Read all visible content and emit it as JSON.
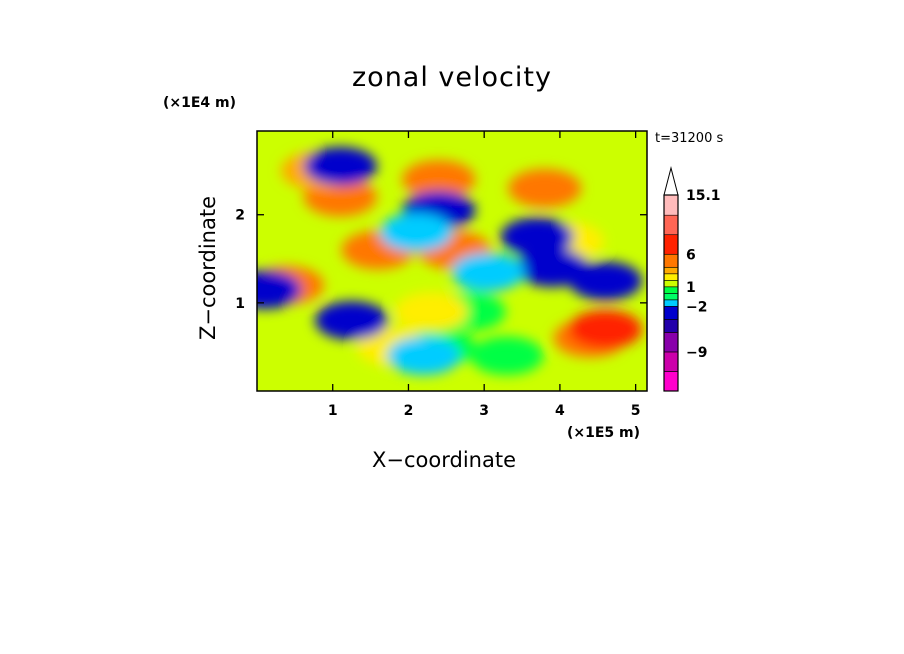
{
  "chart_data": {
    "type": "heatmap",
    "title": "zonal velocity",
    "xlabel": "X−coordinate",
    "ylabel": "Z−coordinate",
    "x_units": "(×1E5 m)",
    "y_units": "(×1E4 m)",
    "annotation": "t=31200 s",
    "xlim": [
      0,
      5.15
    ],
    "ylim": [
      0,
      2.95
    ],
    "x_ticks": [
      1,
      2,
      3,
      4,
      5
    ],
    "y_ticks": [
      1,
      2
    ],
    "colorbar": {
      "labels": [
        {
          "value": 15.1,
          "text": "15.1"
        },
        {
          "value": 6,
          "text": "6"
        },
        {
          "value": 1,
          "text": "1"
        },
        {
          "value": -2,
          "text": "−2"
        },
        {
          "value": -9,
          "text": "−9"
        }
      ],
      "levels": [
        {
          "min": -15,
          "max": -12,
          "color": "#ff00cc"
        },
        {
          "min": -12,
          "max": -9,
          "color": "#cc00aa"
        },
        {
          "min": -9,
          "max": -6,
          "color": "#8800aa"
        },
        {
          "min": -6,
          "max": -4,
          "color": "#2200aa"
        },
        {
          "min": -4,
          "max": -2,
          "color": "#0000cc"
        },
        {
          "min": -2,
          "max": -1,
          "color": "#00ccff"
        },
        {
          "min": -1,
          "max": 0,
          "color": "#00ff66"
        },
        {
          "min": 0,
          "max": 1,
          "color": "#00ff44"
        },
        {
          "min": 1,
          "max": 2,
          "color": "#ccff00"
        },
        {
          "min": 2,
          "max": 3,
          "color": "#ffee00"
        },
        {
          "min": 3,
          "max": 4,
          "color": "#ffaa00"
        },
        {
          "min": 4,
          "max": 6,
          "color": "#ff7700"
        },
        {
          "min": 6,
          "max": 9,
          "color": "#ff2200"
        },
        {
          "min": 9,
          "max": 12,
          "color": "#ff6655"
        },
        {
          "min": 12,
          "max": 15.1,
          "color": "#ffbbbb"
        }
      ],
      "extend": "max"
    },
    "field_structure": [
      {
        "x": 2.8,
        "z": 0.9,
        "value": 0.5
      },
      {
        "x": 2.4,
        "z": 0.5,
        "value": 0.5
      },
      {
        "x": 3.3,
        "z": 0.4,
        "value": 0.5
      },
      {
        "x": 1.8,
        "z": 0.5,
        "value": 2.5
      },
      {
        "x": 2.3,
        "z": 0.9,
        "value": 2.5
      },
      {
        "x": 1.6,
        "z": 1.6,
        "value": 4
      },
      {
        "x": 2.6,
        "z": 1.6,
        "value": 4
      },
      {
        "x": 0.4,
        "z": 1.2,
        "value": 5
      },
      {
        "x": 4.4,
        "z": 0.6,
        "value": 5
      },
      {
        "x": 4.6,
        "z": 0.7,
        "value": 7
      },
      {
        "x": 1.1,
        "z": 2.2,
        "value": 5
      },
      {
        "x": 2.4,
        "z": 2.4,
        "value": 5
      },
      {
        "x": 3.8,
        "z": 2.3,
        "value": 5
      },
      {
        "x": 0.8,
        "z": 2.5,
        "value": 3
      },
      {
        "x": 4.1,
        "z": 1.7,
        "value": 2.5
      },
      {
        "x": 4.6,
        "z": 1.25,
        "value": -3.5
      },
      {
        "x": 3.9,
        "z": 1.4,
        "value": -3.5
      },
      {
        "x": 1.1,
        "z": 2.55,
        "value": -3.5
      },
      {
        "x": 2.4,
        "z": 2.05,
        "value": -3.5
      },
      {
        "x": 3.7,
        "z": 1.75,
        "value": -3.5
      },
      {
        "x": 1.25,
        "z": 0.8,
        "value": -3.5
      },
      {
        "x": 0.1,
        "z": 1.15,
        "value": -3.5
      },
      {
        "x": 2.1,
        "z": 1.8,
        "value": -1.5
      },
      {
        "x": 2.2,
        "z": 0.4,
        "value": -1.5
      },
      {
        "x": 3.05,
        "z": 1.35,
        "value": -1.5
      }
    ]
  }
}
